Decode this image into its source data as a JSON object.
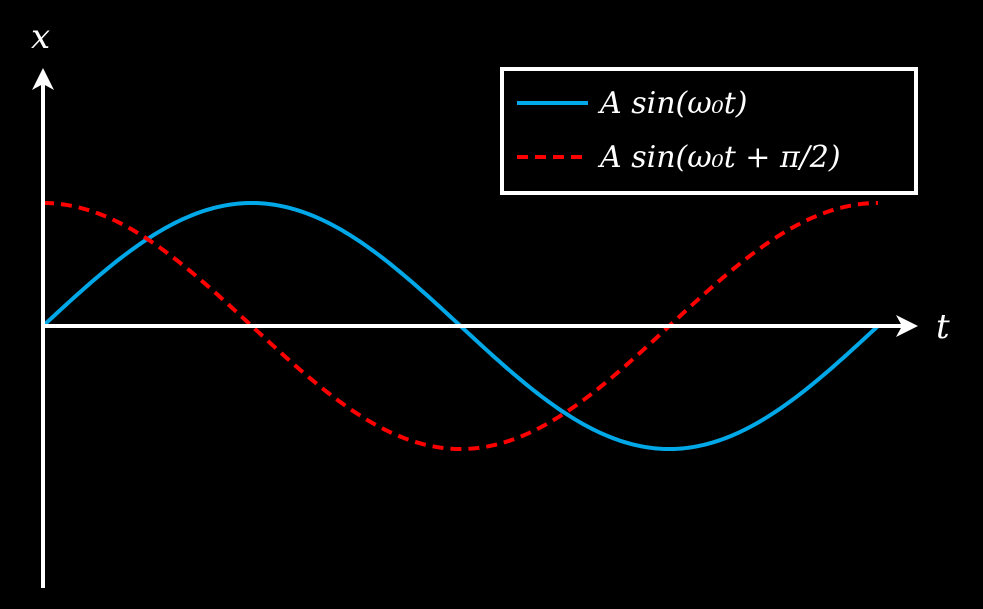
{
  "chart_data": {
    "type": "line",
    "title": "",
    "xlabel": "t",
    "ylabel": "x",
    "grid": false,
    "legend_position": "top-right",
    "x_range": [
      0,
      6.2832
    ],
    "y_range": [
      -2.1,
      1.2
    ],
    "series": [
      {
        "name": "A sin(ω₀t)",
        "color": "#00a8e8",
        "style": "solid",
        "function": "sin",
        "amplitude": 1,
        "phase": 0,
        "x": [
          0,
          0.7854,
          1.5708,
          2.3562,
          3.1416,
          3.927,
          4.7124,
          5.4978,
          6.2832
        ],
        "y": [
          0,
          0.7071,
          1,
          0.7071,
          0,
          -0.7071,
          -1,
          -0.7071,
          0
        ]
      },
      {
        "name": "A sin(ω₀t + π/2)",
        "color": "#ff0000",
        "style": "dashed",
        "function": "sin",
        "amplitude": 1,
        "phase": 1.5708,
        "x": [
          0,
          0.7854,
          1.5708,
          2.3562,
          3.1416,
          3.927,
          4.7124,
          5.4978,
          6.2832
        ],
        "y": [
          1,
          0.7071,
          0,
          -0.7071,
          -1,
          -0.7071,
          0,
          0.7071,
          1
        ]
      }
    ]
  }
}
